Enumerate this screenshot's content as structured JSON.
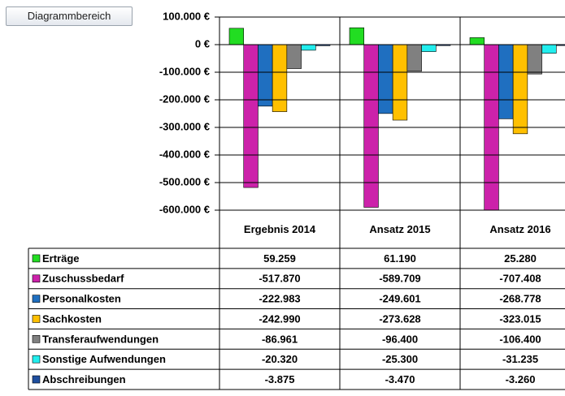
{
  "tooltip": "Diagrammbereich",
  "chart_data": {
    "type": "bar",
    "categories": [
      "Ergebnis 2014",
      "Ansatz 2015",
      "Ansatz 2016"
    ],
    "ylim": [
      -600000,
      100000
    ],
    "yticks": [
      {
        "value": 100000,
        "label": "100.000 €"
      },
      {
        "value": 0,
        "label": "0 €"
      },
      {
        "value": -100000,
        "label": "-100.000 €"
      },
      {
        "value": -200000,
        "label": "-200.000 €"
      },
      {
        "value": -300000,
        "label": "-300.000 €"
      },
      {
        "value": -400000,
        "label": "-400.000 €"
      },
      {
        "value": -500000,
        "label": "-500.000 €"
      },
      {
        "value": -600000,
        "label": "-600.000 €"
      }
    ],
    "grid": true,
    "series": [
      {
        "name": "Erträge",
        "color": "#22dd22",
        "values": [
          59259,
          61190,
          25280
        ],
        "value_labels": [
          "59.259",
          "61.190",
          "25.280"
        ]
      },
      {
        "name": "Zuschussbedarf",
        "color": "#cc22aa",
        "values": [
          -517870,
          -589709,
          -707408
        ],
        "value_labels": [
          "-517.870",
          "-589.709",
          "-707.408"
        ]
      },
      {
        "name": "Personalkosten",
        "color": "#1f6fc0",
        "values": [
          -222983,
          -249601,
          -268778
        ],
        "value_labels": [
          "-222.983",
          "-249.601",
          "-268.778"
        ]
      },
      {
        "name": "Sachkosten",
        "color": "#ffc000",
        "values": [
          -242990,
          -273628,
          -323015
        ],
        "value_labels": [
          "-242.990",
          "-273.628",
          "-323.015"
        ]
      },
      {
        "name": "Transferaufwendungen",
        "color": "#808080",
        "values": [
          -86961,
          -96400,
          -106400
        ],
        "value_labels": [
          "-86.961",
          "-96.400",
          "-106.400"
        ]
      },
      {
        "name": "Sonstige Aufwendungen",
        "color": "#22eeee",
        "values": [
          -20320,
          -25300,
          -31235
        ],
        "value_labels": [
          "-20.320",
          "-25.300",
          "-31.235"
        ]
      },
      {
        "name": "Abschreibungen",
        "color": "#1f4f9f",
        "values": [
          -3875,
          -3470,
          -3260
        ],
        "value_labels": [
          "-3.875",
          "-3.470",
          "-3.260"
        ]
      }
    ]
  }
}
